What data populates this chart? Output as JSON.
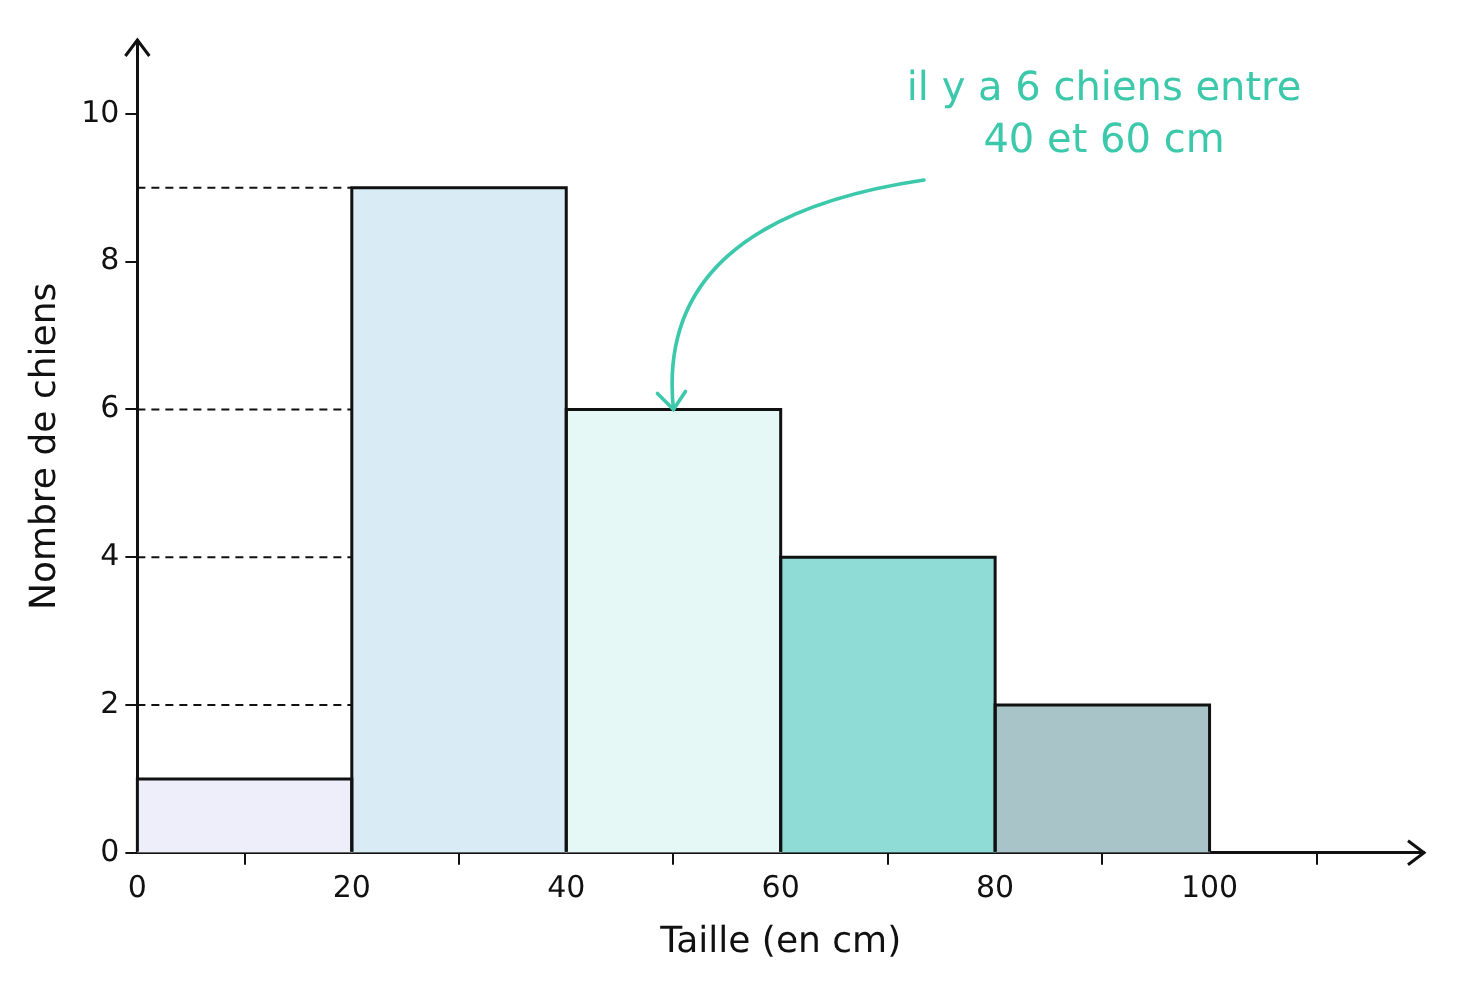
{
  "chart_data": {
    "type": "histogram",
    "xlabel": "Taille (en cm)",
    "ylabel": "Nombre de chiens",
    "bins": [
      0,
      20,
      40,
      60,
      80,
      100
    ],
    "values": [
      1,
      9,
      6,
      4,
      2
    ],
    "colors": [
      "#eeeefa",
      "#d9ebf5",
      "#e6f8f6",
      "#8fdbd6",
      "#a9c4c9"
    ],
    "xlim": [
      0,
      120
    ],
    "xticks": [
      0,
      20,
      40,
      60,
      80,
      100
    ],
    "ylim": [
      0,
      11
    ],
    "yticks": [
      0,
      2,
      4,
      6,
      8,
      10
    ],
    "grid": false,
    "legend": false,
    "ref_lines": [
      {
        "axis": "y",
        "value": 9,
        "line_style": "dashed"
      },
      {
        "axis": "y",
        "value": 6,
        "line_style": "dashed"
      },
      {
        "axis": "y",
        "value": 4,
        "line_style": "dashed"
      },
      {
        "axis": "y",
        "value": 2,
        "line_style": "dashed"
      }
    ],
    "annotations": [
      {
        "text": "il y a 6 chiens entre 40 et 60 cm",
        "x": 50,
        "y": 6
      }
    ]
  }
}
